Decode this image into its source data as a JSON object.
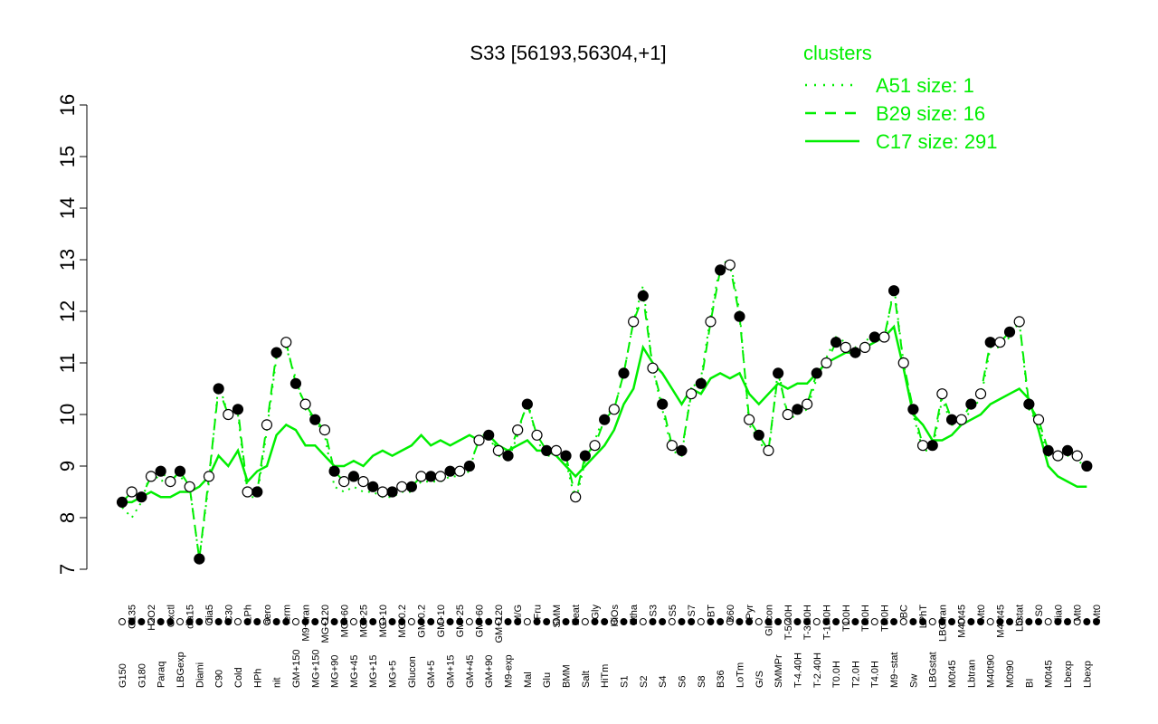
{
  "chart_data": {
    "type": "line",
    "title": "S33 [56193,56304,+1]",
    "xlabel": "",
    "ylabel": "",
    "ylim": [
      7,
      16
    ],
    "yticks": [
      7,
      8,
      9,
      10,
      11,
      12,
      13,
      14,
      15,
      16
    ],
    "grid": false,
    "legend": {
      "title": "clusters",
      "position": "top-right",
      "entries": [
        {
          "label": "A51 size: 1",
          "style": "dotted"
        },
        {
          "label": "B29 size: 16",
          "style": "dashed"
        },
        {
          "label": "C17 size: 291",
          "style": "solid"
        }
      ]
    },
    "x_tick_labels": [
      "G150",
      "G135",
      "G180",
      "H2O2",
      "Paraq",
      "Oxctl",
      "LBGexp",
      "dia15",
      "Diami",
      "dia5",
      "C90",
      "C30",
      "Cold",
      "LPh",
      "HPh",
      "aero",
      "nit",
      "ferm",
      "GM+150",
      "M9~tran",
      "MG+150",
      "MG+120",
      "MG+90",
      "MG+60",
      "MG+45",
      "MG+25",
      "MG+15",
      "MG+10",
      "MG+5",
      "MG-0.2",
      "Glucon",
      "GM-0.2",
      "GM+5",
      "GM+10",
      "GM+15",
      "GM+25",
      "GM+45",
      "GM+60",
      "GM+90",
      "GM+120",
      "M9-exp",
      "M/G",
      "Mal",
      "Fru",
      "Glu",
      "SMM",
      "BMM",
      "Heat",
      "Salt",
      "Gly",
      "HiTm",
      "HiOs",
      "S1",
      "Etha",
      "S2",
      "S3",
      "S4",
      "S5",
      "S6",
      "S7",
      "S8",
      "BT",
      "B36",
      "B60",
      "LoTm",
      "Pyr",
      "G/S",
      "Glucon",
      "SMMPr",
      "T-5.40H",
      "T-4.40H",
      "T-3.40H",
      "T-2.40H",
      "T-1.40H",
      "T0.0H",
      "T1.0H",
      "T2.0H",
      "T3.0H",
      "T4.0H",
      "T5.0H",
      "M9~stat",
      "BC",
      "Sw",
      "LPhT",
      "LBGstat",
      "LBGtran",
      "M0t45",
      "M40t45",
      "Lbtran",
      "Mt0",
      "M40t90",
      "M40t45",
      "M0t90",
      "Lbstat",
      "BI",
      "S0",
      "M0t45",
      "dia0",
      "Lbexp",
      "Mt0",
      "Lbexp",
      "Mt0"
    ],
    "series": [
      {
        "style": "dashed",
        "values": [
          8.3,
          8.5,
          8.4,
          8.8,
          8.9,
          8.7,
          8.9,
          8.6,
          7.2,
          8.8,
          10.5,
          10.0,
          10.1,
          8.5,
          8.5,
          9.8,
          11.2,
          11.4,
          10.6,
          10.2,
          9.9,
          9.7,
          8.9,
          8.7,
          8.8,
          8.7,
          8.6,
          8.5,
          8.5,
          8.6,
          8.6,
          8.8,
          8.8,
          8.8,
          8.9,
          8.9,
          9.0,
          9.5,
          9.6,
          9.3,
          9.2,
          9.7,
          10.2,
          9.6,
          9.3,
          9.3,
          9.2,
          8.4,
          9.2,
          9.4,
          9.9,
          10.1,
          10.8,
          11.8,
          12.3,
          10.9,
          10.2,
          9.4,
          9.3,
          10.4,
          10.6,
          11.8,
          12.8,
          12.9,
          11.9,
          9.9,
          9.6,
          9.3,
          10.8,
          10.0,
          10.1,
          10.2,
          10.8,
          11.0,
          11.4,
          11.3,
          11.2,
          11.3,
          11.5,
          11.5,
          12.4,
          11.0,
          10.1,
          9.4,
          9.4,
          10.4,
          9.9,
          9.9,
          10.2,
          10.4,
          11.4,
          11.4,
          11.6,
          11.8,
          10.2,
          9.9,
          9.3,
          9.2,
          9.3,
          9.2,
          9.0
        ],
        "marker": "point"
      },
      {
        "style": "solid",
        "values": [
          8.3,
          8.3,
          8.4,
          8.5,
          8.4,
          8.4,
          8.5,
          8.5,
          8.6,
          8.8,
          9.2,
          9.0,
          9.3,
          8.7,
          8.9,
          9.0,
          9.6,
          9.8,
          9.7,
          9.4,
          9.4,
          9.2,
          9.0,
          9.0,
          9.1,
          9.0,
          9.2,
          9.3,
          9.2,
          9.3,
          9.4,
          9.6,
          9.4,
          9.5,
          9.4,
          9.5,
          9.6,
          9.5,
          9.6,
          9.4,
          9.3,
          9.4,
          9.5,
          9.3,
          9.3,
          9.2,
          9.0,
          8.8,
          9.0,
          9.2,
          9.4,
          9.7,
          10.2,
          10.5,
          11.3,
          11.0,
          10.8,
          10.5,
          10.2,
          10.5,
          10.4,
          10.7,
          10.8,
          10.7,
          10.8,
          10.4,
          10.2,
          10.4,
          10.6,
          10.5,
          10.6,
          10.6,
          10.8,
          11.0,
          11.1,
          11.2,
          11.2,
          11.3,
          11.4,
          11.5,
          11.7,
          10.9,
          10.0,
          9.8,
          9.5,
          9.5,
          9.6,
          9.8,
          9.9,
          10.0,
          10.2,
          10.3,
          10.4,
          10.5,
          10.3,
          9.7,
          9.0,
          8.8,
          8.7,
          8.6,
          8.6
        ]
      },
      {
        "style": "dotted",
        "values": [
          8.2,
          8.0,
          8.3,
          8.9,
          8.7,
          8.8,
          8.8,
          8.6,
          7.2,
          8.7,
          10.6,
          10.0,
          10.0,
          8.4,
          8.4,
          9.7,
          11.1,
          11.3,
          10.7,
          10.1,
          9.9,
          9.6,
          8.6,
          8.5,
          8.6,
          8.5,
          8.5,
          8.4,
          8.4,
          8.5,
          8.5,
          8.7,
          8.7,
          8.7,
          8.8,
          8.8,
          8.9,
          9.6,
          9.6,
          9.2,
          9.1,
          9.6,
          10.3,
          9.5,
          9.2,
          9.2,
          9.1,
          8.3,
          9.1,
          9.5,
          10.0,
          10.1,
          10.8,
          11.8,
          12.5,
          10.9,
          10.1,
          9.3,
          9.2,
          10.5,
          10.7,
          11.9,
          12.9,
          13.0,
          12.0,
          9.8,
          9.5,
          9.2,
          10.9,
          9.9,
          10.0,
          10.1,
          10.7,
          11.1,
          11.5,
          11.4,
          11.3,
          11.4,
          11.6,
          11.4,
          12.5,
          11.0,
          10.0,
          9.3,
          9.3,
          10.3,
          9.8,
          9.8,
          10.1,
          10.3,
          11.3,
          11.3,
          11.5,
          11.8,
          10.1,
          9.8,
          9.2,
          9.1,
          9.2,
          9.1,
          9.0
        ]
      }
    ],
    "colors": {
      "lines": "#00ee00",
      "points": "#000000",
      "axis": "#000000",
      "background": "#ffffff"
    }
  }
}
